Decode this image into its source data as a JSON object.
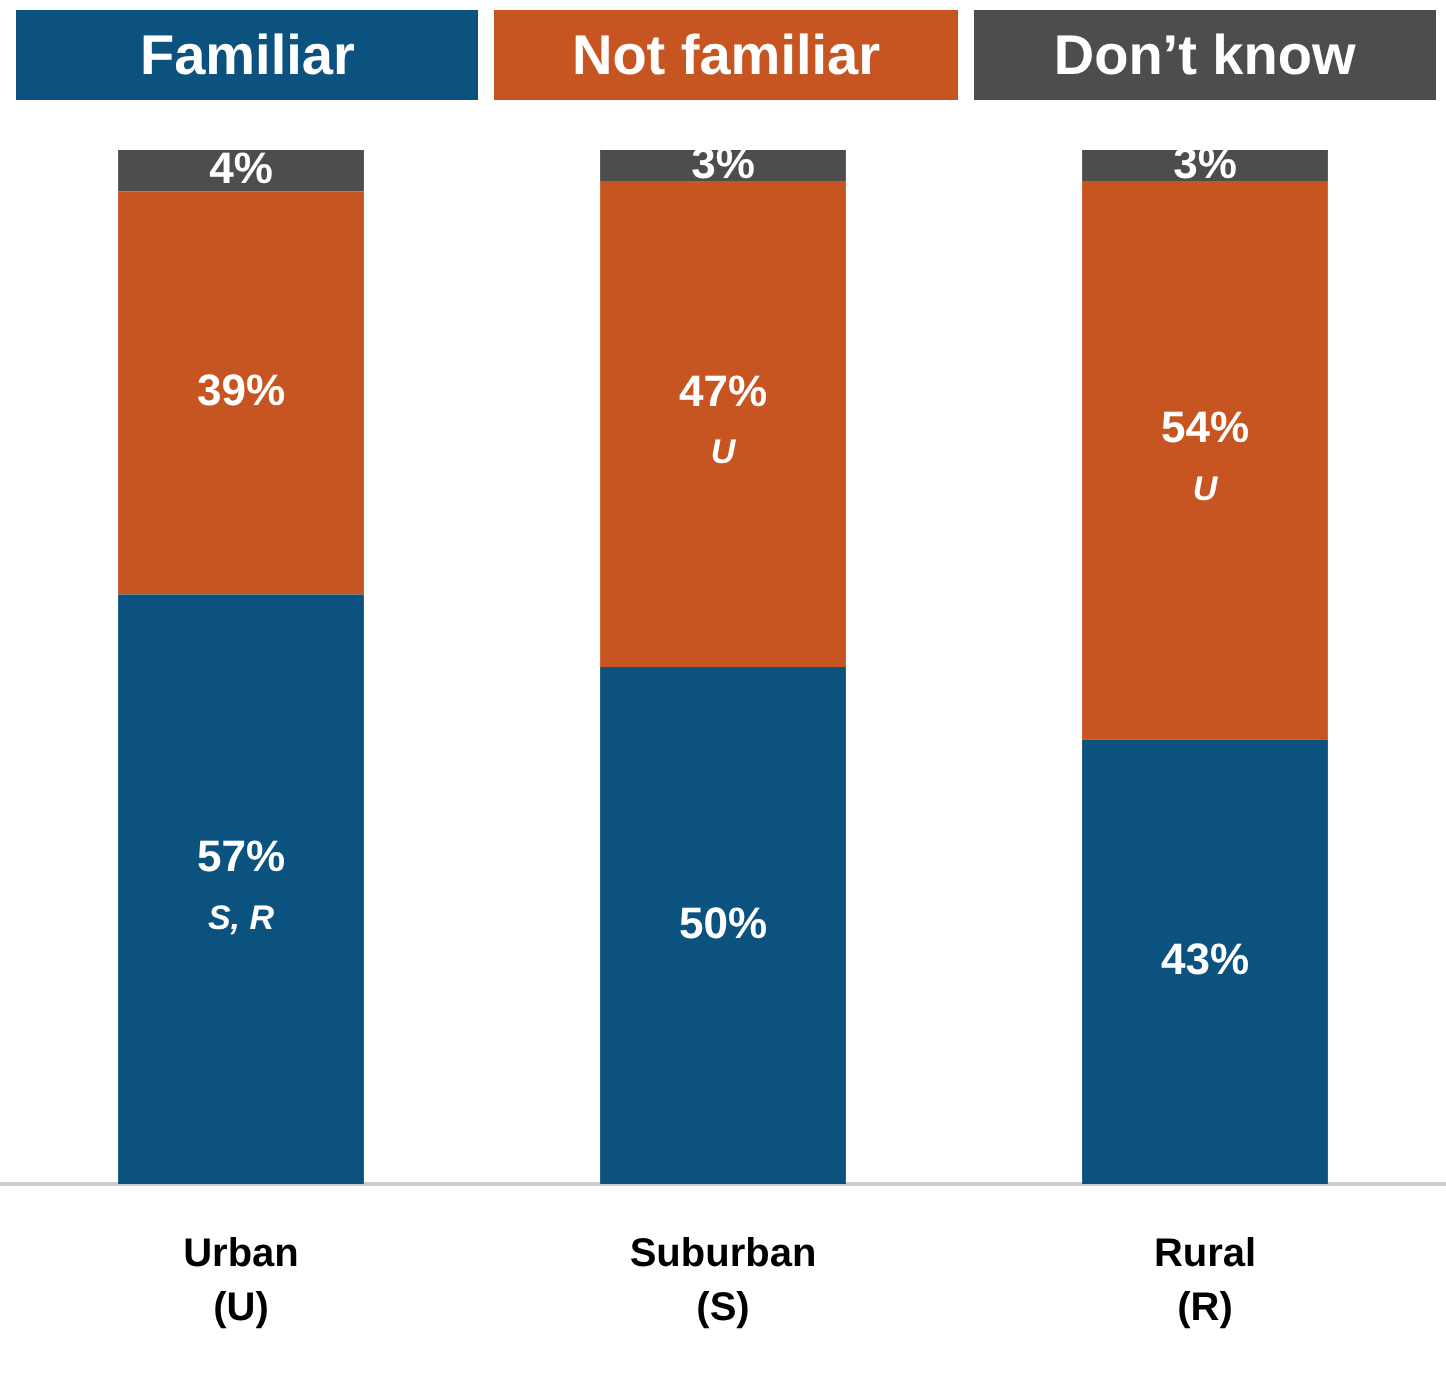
{
  "chart_data": {
    "type": "bar",
    "stacked": true,
    "categories": [
      "Urban (U)",
      "Suburban (S)",
      "Rural (R)"
    ],
    "series": [
      {
        "name": "Familiar",
        "color": "#0b527f",
        "values": [
          57,
          50,
          43
        ],
        "value_labels": [
          "57%\nS, R",
          "50%",
          "43%"
        ]
      },
      {
        "name": "Not familiar",
        "color": "#c75521",
        "values": [
          39,
          47,
          54
        ],
        "value_labels": [
          "39%",
          "47%\nU",
          "54%\nU"
        ]
      },
      {
        "name": "Don’t know",
        "color": "#4d4d4d",
        "values": [
          4,
          3,
          3
        ],
        "value_labels": [
          "4%",
          "3%",
          "3%"
        ]
      }
    ],
    "grid": false,
    "legend": "top",
    "tick_labels": "x"
  }
}
